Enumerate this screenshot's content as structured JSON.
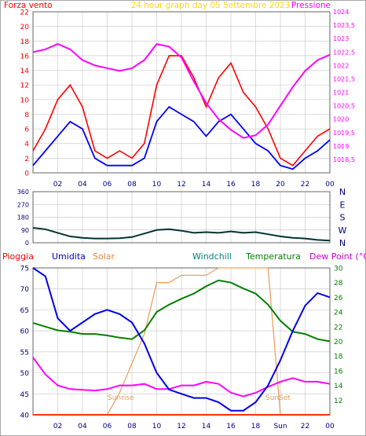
{
  "colors": {
    "wind": "#ff0000",
    "gust_avg": "#0000ff",
    "pressure": "#ff00ff",
    "direction": "#003333",
    "grid": "#cccccc",
    "humidity": "#0000ee",
    "solar": "#f0a060",
    "temperature": "#008000",
    "dew_point": "#ff00ff",
    "rain": "#ff3300",
    "sunrise_label": "#e0a060"
  },
  "chart_data": [
    {
      "type": "line",
      "title": "24 hour graph day  05 Settembre 2023",
      "left_label": "Forza vento",
      "right_label": "Pressione",
      "x_ticks": [
        "02",
        "04",
        "06",
        "08",
        "10",
        "12",
        "14",
        "16",
        "18",
        "20",
        "22",
        "00"
      ],
      "ylim_left": [
        0,
        22
      ],
      "y_ticks_left": [
        "0",
        "2",
        "4",
        "6",
        "8",
        "10",
        "12",
        "14",
        "16",
        "18",
        "20",
        "22"
      ],
      "ylim_right": [
        1018.0,
        1024.0
      ],
      "y_ticks_right": [
        "1018,5",
        "1019",
        "1019,5",
        "1020",
        "1020,5",
        "1021",
        "1021,5",
        "1022",
        "1022,5",
        "1023",
        "1023,5",
        "1024"
      ],
      "grid": true,
      "x_hours": [
        0,
        1,
        2,
        3,
        4,
        5,
        6,
        7,
        8,
        9,
        10,
        11,
        12,
        13,
        14,
        15,
        16,
        17,
        18,
        19,
        20,
        21,
        22,
        23,
        24
      ],
      "series": [
        {
          "axis": "left",
          "values": [
            3,
            6,
            10,
            12,
            9,
            3,
            2,
            3,
            2,
            4,
            12,
            16,
            16,
            13,
            9,
            13,
            15,
            11,
            9,
            6,
            2,
            1,
            3,
            5,
            6
          ]
        },
        {
          "axis": "left",
          "values": [
            1,
            3,
            5,
            7,
            6,
            2,
            1,
            1,
            1,
            2,
            7,
            9,
            8,
            7,
            5,
            7,
            8,
            6,
            4,
            3,
            1,
            0.5,
            2,
            3,
            4.5
          ]
        },
        {
          "axis": "right",
          "values": [
            1022.5,
            1022.6,
            1022.8,
            1022.6,
            1022.2,
            1022.0,
            1021.9,
            1021.8,
            1021.9,
            1022.2,
            1022.8,
            1022.7,
            1022.3,
            1021.4,
            1020.6,
            1020.0,
            1019.6,
            1019.3,
            1019.4,
            1019.8,
            1020.5,
            1021.2,
            1021.8,
            1022.2,
            1022.4
          ]
        }
      ]
    },
    {
      "type": "line",
      "y_ticks_left": [
        "0",
        "90",
        "180",
        "270",
        "360"
      ],
      "y_ticks_right": [
        "N",
        "W",
        "S",
        "E",
        "N"
      ],
      "ylim": [
        0,
        360
      ],
      "x_hours": [
        0,
        1,
        2,
        3,
        4,
        5,
        6,
        7,
        8,
        9,
        10,
        11,
        12,
        13,
        14,
        15,
        16,
        17,
        18,
        19,
        20,
        21,
        22,
        23,
        24
      ],
      "series": [
        {
          "values": [
            105,
            95,
            70,
            45,
            35,
            30,
            30,
            32,
            40,
            65,
            90,
            95,
            85,
            70,
            75,
            70,
            80,
            70,
            75,
            60,
            45,
            35,
            30,
            20,
            15
          ]
        }
      ]
    },
    {
      "type": "line",
      "legend": [
        "Pioggia",
        "Umidita",
        "Solar",
        "Windchill",
        "Temperatura",
        "Dew Point (°C)"
      ],
      "x_ticks": [
        "02",
        "04",
        "06",
        "08",
        "10",
        "12",
        "14",
        "16",
        "18",
        "Sun",
        "22",
        "00"
      ],
      "annotations": [
        "Sunrise",
        "SunSet"
      ],
      "ylim_left": [
        40,
        75
      ],
      "y_ticks_left": [
        "40",
        "45",
        "50",
        "55",
        "60",
        "65",
        "70",
        "75"
      ],
      "ylim_right": [
        10,
        30
      ],
      "y_ticks_right": [
        "12",
        "14",
        "16",
        "18",
        "20",
        "22",
        "24",
        "26",
        "28",
        "30"
      ],
      "x_hours": [
        0,
        1,
        2,
        3,
        4,
        5,
        6,
        7,
        8,
        9,
        10,
        11,
        12,
        13,
        14,
        15,
        16,
        17,
        18,
        19,
        20,
        21,
        22,
        23,
        24
      ],
      "series": [
        {
          "name": "Umidita",
          "axis": "left",
          "values": [
            75,
            73,
            63,
            60,
            62,
            64,
            65,
            64,
            62,
            57,
            50,
            46,
            45,
            44,
            44,
            43,
            41,
            41,
            43,
            47,
            53,
            60,
            66,
            69,
            68
          ]
        },
        {
          "name": "Temperatura",
          "axis": "right",
          "values": [
            22.5,
            22,
            21.5,
            21.3,
            21,
            21,
            20.8,
            20.5,
            20.3,
            21.5,
            24,
            25,
            25.8,
            26.5,
            27.5,
            28.3,
            28,
            27.2,
            26.5,
            25,
            22.8,
            21.3,
            21,
            20.3,
            20
          ]
        },
        {
          "name": "Dew Point (°C)",
          "axis": "right",
          "values": [
            17.8,
            15.5,
            14,
            13.5,
            13.4,
            13.3,
            13.5,
            14,
            14,
            14.2,
            13.5,
            13.5,
            14,
            14,
            14.5,
            14.2,
            13,
            12.5,
            13,
            13.8,
            14.5,
            15,
            14.5,
            14.5,
            14.2
          ]
        },
        {
          "name": "Solar",
          "axis": "right",
          "values": [
            10,
            10,
            10,
            10,
            10,
            10,
            10,
            13,
            17,
            21,
            28,
            28,
            29,
            29,
            29,
            30,
            30,
            30,
            30,
            30,
            10,
            10,
            10,
            10,
            10
          ]
        },
        {
          "name": "Pioggia",
          "axis": "right",
          "values": [
            10,
            10,
            10,
            10,
            10,
            10,
            10,
            10,
            10,
            10,
            10,
            10,
            10,
            10,
            10,
            10,
            10,
            10,
            10,
            10,
            10,
            10,
            10,
            10,
            10
          ]
        }
      ]
    }
  ]
}
